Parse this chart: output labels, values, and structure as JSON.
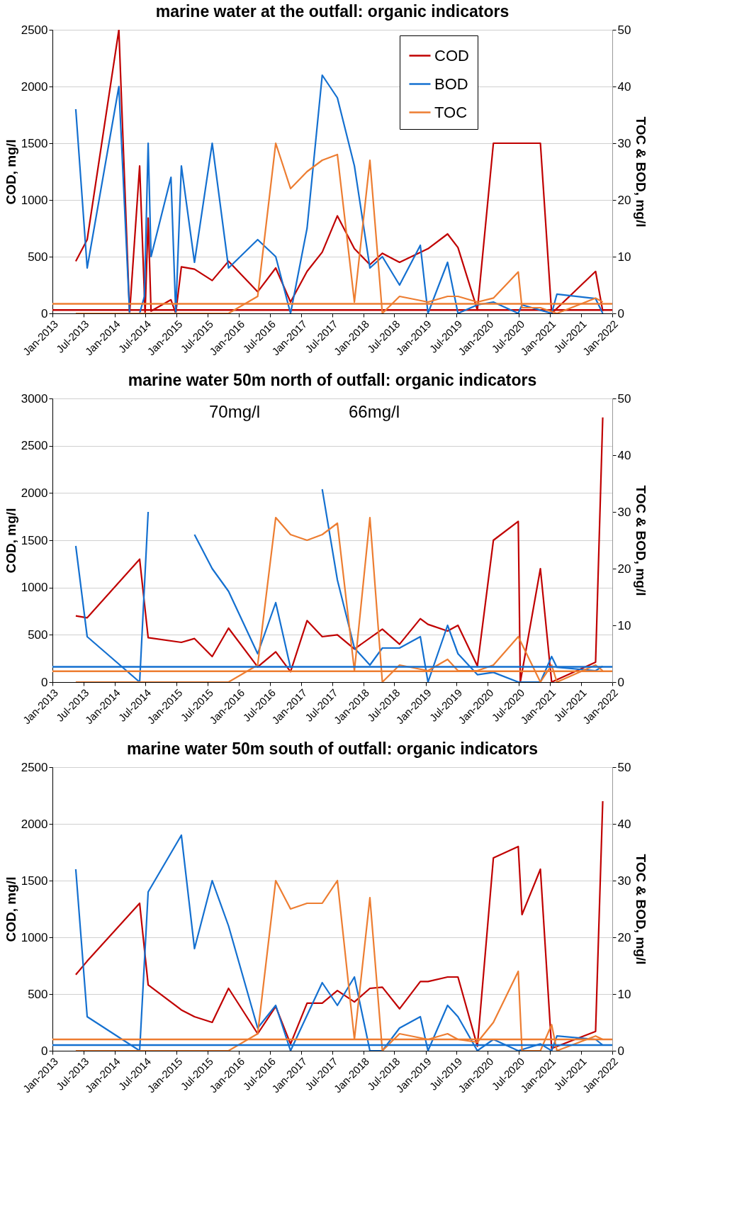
{
  "chart_data": [
    {
      "type": "line",
      "title": "marine water at the outfall: organic indicators",
      "ylabel": "COD, mg/l",
      "y2label": "TOC & BOD, mg/l",
      "xlim": [
        "2013-01",
        "2022-01"
      ],
      "xticks": [
        {
          "value": "2013-01",
          "label": "Jan-2013"
        },
        {
          "value": "2013-07",
          "label": "Jul-2013"
        },
        {
          "value": "2014-01",
          "label": "Jan-2014"
        },
        {
          "value": "2014-07",
          "label": "Jul-2014"
        },
        {
          "value": "2015-01",
          "label": "Jan-2015"
        },
        {
          "value": "2015-07",
          "label": "Jul-2015"
        },
        {
          "value": "2016-01",
          "label": "Jan-2016"
        },
        {
          "value": "2016-07",
          "label": "Jul-2016"
        },
        {
          "value": "2017-01",
          "label": "Jan-2017"
        },
        {
          "value": "2017-07",
          "label": "Jul-2017"
        },
        {
          "value": "2018-01",
          "label": "Jan-2018"
        },
        {
          "value": "2018-07",
          "label": "Jul-2018"
        },
        {
          "value": "2019-01",
          "label": "Jan-2019"
        },
        {
          "value": "2019-07",
          "label": "Jul-2019"
        },
        {
          "value": "2020-01",
          "label": "Jan-2020"
        },
        {
          "value": "2020-07",
          "label": "Jul-2020"
        },
        {
          "value": "2021-01",
          "label": "Jan-2021"
        },
        {
          "value": "2021-07",
          "label": "Jul-2021"
        },
        {
          "value": "2022-01",
          "label": "Jan-2022"
        }
      ],
      "ylim": [
        0,
        2500
      ],
      "yticks": [
        0,
        500,
        1000,
        1500,
        2000,
        2500
      ],
      "y2lim": [
        0,
        50
      ],
      "y2ticks": [
        0,
        10,
        20,
        30,
        40,
        50
      ],
      "grid": "y",
      "legend": "top right",
      "series": [
        {
          "name": "COD",
          "color": "#c00000",
          "x": [
            "2013-05-18",
            "2013-07-24",
            "2014-01-26",
            "2014-03-30",
            "2014-05-28",
            "2014-06-29",
            "2014-07-17",
            "2014-08-03",
            "2014-11-28",
            "2014-12-26",
            "2015-01-28",
            "2015-04-15",
            "2015-07-28",
            "2015-11-01",
            "2016-04-20",
            "2016-08-04",
            "2016-10-30",
            "2017-02-04",
            "2017-05-04",
            "2017-08-01",
            "2017-11-09",
            "2018-02-08",
            "2018-04-22",
            "2018-08-01",
            "2019-01-15",
            "2019-05-10",
            "2019-07-10",
            "2019-11-01",
            "2020-02-03",
            "2020-11-05",
            "2021-01-10",
            "2021-09-25",
            "2021-11-06"
          ],
          "values": [
            460,
            650,
            2500,
            0,
            1300,
            0,
            840,
            20,
            120,
            0,
            410,
            390,
            290,
            460,
            190,
            400,
            100,
            370,
            540,
            860,
            570,
            430,
            530,
            450,
            570,
            700,
            580,
            30,
            1500,
            1500,
            0,
            370,
            20
          ]
        },
        {
          "name": "BOD",
          "color": "#1470d0",
          "axis": "y2",
          "x": [
            "2013-05-18",
            "2013-07-24",
            "2014-01-26",
            "2014-03-30",
            "2014-05-28",
            "2014-06-25",
            "2014-07-17",
            "2014-08-03",
            "2014-11-28",
            "2014-12-26",
            "2015-01-28",
            "2015-04-15",
            "2015-07-28",
            "2015-11-01",
            "2016-04-20",
            "2016-08-04",
            "2016-10-30",
            "2017-02-04",
            "2017-05-04",
            "2017-08-01",
            "2017-11-09",
            "2018-02-08",
            "2018-04-22",
            "2018-08-01",
            "2018-12-01",
            "2019-01-15",
            "2019-05-10",
            "2019-07-10",
            "2019-11-01",
            "2020-02-03",
            "2020-06-28",
            "2020-07-20",
            "2021-01-10",
            "2021-02-10",
            "2021-09-25",
            "2021-11-06"
          ],
          "values": [
            36,
            8,
            40,
            0,
            0,
            3,
            30,
            10,
            24,
            0,
            26,
            9,
            30,
            8,
            13,
            10,
            0,
            15,
            42,
            38,
            26,
            8,
            10,
            5,
            12,
            0,
            9,
            0,
            1.5,
            2,
            0,
            1.5,
            0,
            3.4,
            2.6,
            0
          ]
        },
        {
          "name": "TOC",
          "color": "#ed7d31",
          "axis": "y2",
          "x": [
            "2013-05-18",
            "2015-11-01",
            "2016-04-20",
            "2016-08-04",
            "2016-10-30",
            "2017-02-04",
            "2017-05-04",
            "2017-08-01",
            "2017-11-09",
            "2018-02-08",
            "2018-04-22",
            "2018-08-01",
            "2019-01-15",
            "2019-05-10",
            "2019-07-10",
            "2019-11-01",
            "2020-02-03",
            "2020-06-28",
            "2020-07-20",
            "2020-11-05",
            "2021-02-10",
            "2021-09-25",
            "2021-11-06"
          ],
          "values": [
            0,
            0,
            3,
            30,
            22,
            25,
            27,
            28,
            2,
            27,
            0,
            3,
            2,
            3,
            3,
            2,
            2.7,
            7.3,
            1,
            1,
            0,
            2.7,
            2
          ]
        }
      ],
      "ref_lines": [
        {
          "axis": "y",
          "value": 30,
          "color": "#c00000"
        },
        {
          "axis": "y2",
          "value": 1.7,
          "color": "#ed7d31"
        }
      ]
    },
    {
      "type": "line",
      "title": "marine water 50m north of outfall: organic indicators",
      "ylabel": "COD, mg/l",
      "y2label": "TOC & BOD, mg/l",
      "xlim": [
        "2013-01",
        "2022-01"
      ],
      "xticks": [
        {
          "value": "2013-01",
          "label": "Jan-2013"
        },
        {
          "value": "2013-07",
          "label": "Jul-2013"
        },
        {
          "value": "2014-01",
          "label": "Jan-2014"
        },
        {
          "value": "2014-07",
          "label": "Jul-2014"
        },
        {
          "value": "2015-01",
          "label": "Jan-2015"
        },
        {
          "value": "2015-07",
          "label": "Jul-2015"
        },
        {
          "value": "2016-01",
          "label": "Jan-2016"
        },
        {
          "value": "2016-07",
          "label": "Jul-2016"
        },
        {
          "value": "2017-01",
          "label": "Jan-2017"
        },
        {
          "value": "2017-07",
          "label": "Jul-2017"
        },
        {
          "value": "2018-01",
          "label": "Jan-2018"
        },
        {
          "value": "2018-07",
          "label": "Jul-2018"
        },
        {
          "value": "2019-01",
          "label": "Jan-2019"
        },
        {
          "value": "2019-07",
          "label": "Jul-2019"
        },
        {
          "value": "2020-01",
          "label": "Jan-2020"
        },
        {
          "value": "2020-07",
          "label": "Jul-2020"
        },
        {
          "value": "2021-01",
          "label": "Jan-2021"
        },
        {
          "value": "2021-07",
          "label": "Jul-2021"
        },
        {
          "value": "2022-01",
          "label": "Jan-2022"
        }
      ],
      "ylim": [
        0,
        3000
      ],
      "yticks": [
        0,
        500,
        1000,
        1500,
        2000,
        2500,
        3000
      ],
      "y2lim": [
        0,
        50
      ],
      "y2ticks": [
        0,
        10,
        20,
        30,
        40,
        50
      ],
      "grid": "y",
      "legend": "top right",
      "series": [
        {
          "name": "COD",
          "color": "#c00000",
          "x": [
            "2013-05-18",
            "2013-07-24",
            "2014-05-28",
            "2014-07-17",
            "2015-01-28",
            "2015-04-15",
            "2015-07-28",
            "2015-11-01",
            "2016-04-20",
            "2016-08-04",
            "2016-10-30",
            "2017-02-04",
            "2017-05-04",
            "2017-08-01",
            "2017-11-09",
            "2018-04-22",
            "2018-08-01",
            "2018-12-01",
            "2019-01-15",
            "2019-05-10",
            "2019-07-10",
            "2019-11-01",
            "2020-02-03",
            "2020-06-28",
            "2020-07-10",
            "2020-11-05",
            "2021-01-10",
            "2021-09-25",
            "2021-11-06"
          ],
          "values": [
            700,
            680,
            1300,
            470,
            420,
            460,
            270,
            570,
            160,
            320,
            110,
            650,
            480,
            500,
            350,
            560,
            400,
            670,
            610,
            540,
            600,
            170,
            1500,
            1700,
            0,
            1200,
            0,
            210,
            2800
          ]
        },
        {
          "name": "BOD",
          "color": "#1470d0",
          "axis": "y2",
          "x": [
            "2013-05-18",
            "2013-07-24",
            "2014-05-28",
            "2014-07-17",
            "2015-01-28",
            "2015-04-15",
            "2015-07-28",
            "2015-11-01",
            "2016-04-20",
            "2016-08-04",
            "2016-10-30",
            "2017-02-18",
            "2017-05-04",
            "2017-08-01",
            "2017-11-09",
            "2018-02-08",
            "2018-04-22",
            "2018-08-01",
            "2018-12-01",
            "2019-01-15",
            "2019-05-10",
            "2019-07-10",
            "2019-11-01",
            "2020-02-03",
            "2020-06-28",
            "2020-11-05",
            "2021-01-10",
            "2021-02-10",
            "2021-09-25",
            "2021-11-06"
          ],
          "values": [
            24,
            8,
            0,
            30,
            null,
            26,
            20,
            16,
            5,
            14,
            2.5,
            null,
            34,
            18,
            6,
            3,
            6,
            6,
            8,
            0,
            10,
            5,
            1.3,
            1.7,
            0,
            0,
            4.5,
            2.6,
            2,
            2.8
          ]
        },
        {
          "name": "TOC",
          "color": "#ed7d31",
          "axis": "y2",
          "x": [
            "2013-05-18",
            "2015-11-01",
            "2016-04-20",
            "2016-08-04",
            "2016-10-30",
            "2017-02-04",
            "2017-05-04",
            "2017-08-01",
            "2017-11-09",
            "2018-02-08",
            "2018-04-22",
            "2018-08-01",
            "2019-01-15",
            "2019-05-10",
            "2019-07-10",
            "2019-11-01",
            "2020-02-03",
            "2020-06-28",
            "2020-11-05",
            "2021-01-10",
            "2021-02-10",
            "2021-09-25",
            "2021-11-06"
          ],
          "values": [
            0,
            0,
            3,
            29,
            26,
            25,
            26,
            28,
            2,
            29,
            0,
            3,
            2,
            4,
            2,
            2,
            3,
            8,
            0,
            3,
            0,
            3,
            2
          ]
        }
      ],
      "ref_lines": [
        {
          "axis": "y2",
          "value": 2.7,
          "color": "#1470d0"
        },
        {
          "axis": "y2",
          "value": 1.9,
          "color": "#ed7d31"
        }
      ],
      "annotations": [
        "70mg/l",
        "66mg/l"
      ]
    },
    {
      "type": "line",
      "title": "marine water 50m south of outfall: organic indicators",
      "ylabel": "COD, mg/l",
      "y2label": "TOC & BOD, mg/l",
      "xlim": [
        "2013-01",
        "2022-01"
      ],
      "xticks": [
        {
          "value": "2013-01",
          "label": "Jan-2013"
        },
        {
          "value": "2013-07",
          "label": "Jul-2013"
        },
        {
          "value": "2014-01",
          "label": "Jan-2014"
        },
        {
          "value": "2014-07",
          "label": "Jul-2014"
        },
        {
          "value": "2015-01",
          "label": "Jan-2015"
        },
        {
          "value": "2015-07",
          "label": "Jul-2015"
        },
        {
          "value": "2016-01",
          "label": "Jan-2016"
        },
        {
          "value": "2016-07",
          "label": "Jul-2016"
        },
        {
          "value": "2017-01",
          "label": "Jan-2017"
        },
        {
          "value": "2017-07",
          "label": "Jul-2017"
        },
        {
          "value": "2018-01",
          "label": "Jan-2018"
        },
        {
          "value": "2018-07",
          "label": "Jul-2018"
        },
        {
          "value": "2019-01",
          "label": "Jan-2019"
        },
        {
          "value": "2019-07",
          "label": "Jul-2019"
        },
        {
          "value": "2020-01",
          "label": "Jan-2020"
        },
        {
          "value": "2020-07",
          "label": "Jul-2020"
        },
        {
          "value": "2021-01",
          "label": "Jan-2021"
        },
        {
          "value": "2021-07",
          "label": "Jul-2021"
        },
        {
          "value": "2022-01",
          "label": "Jan-2022"
        }
      ],
      "ylim": [
        0,
        2500
      ],
      "yticks": [
        0,
        500,
        1000,
        1500,
        2000,
        2500
      ],
      "y2lim": [
        0,
        50
      ],
      "y2ticks": [
        0,
        10,
        20,
        30,
        40,
        50
      ],
      "grid": "y",
      "legend": "top",
      "series": [
        {
          "name": "COD",
          "color": "#c00000",
          "x": [
            "2013-05-18",
            "2013-07-24",
            "2014-05-28",
            "2014-07-17",
            "2015-01-28",
            "2015-04-15",
            "2015-07-28",
            "2015-11-01",
            "2016-04-20",
            "2016-08-04",
            "2016-10-30",
            "2017-02-04",
            "2017-05-04",
            "2017-08-01",
            "2017-11-09",
            "2018-02-08",
            "2018-04-22",
            "2018-08-01",
            "2018-12-01",
            "2019-01-15",
            "2019-05-10",
            "2019-07-10",
            "2019-11-01",
            "2020-02-03",
            "2020-06-28",
            "2020-07-20",
            "2020-11-05",
            "2021-01-10",
            "2021-09-25",
            "2021-11-06"
          ],
          "values": [
            670,
            790,
            1300,
            580,
            360,
            300,
            250,
            550,
            150,
            390,
            60,
            420,
            420,
            530,
            430,
            550,
            560,
            370,
            610,
            610,
            650,
            650,
            40,
            1700,
            1800,
            1200,
            1600,
            20,
            170,
            2200
          ]
        },
        {
          "name": "BOD",
          "color": "#1470d0",
          "axis": "y2",
          "x": [
            "2013-05-18",
            "2013-07-24",
            "2014-05-28",
            "2014-07-17",
            "2015-01-28",
            "2015-04-15",
            "2015-07-28",
            "2015-11-01",
            "2016-04-20",
            "2016-08-04",
            "2016-10-30",
            "2017-05-04",
            "2017-08-01",
            "2017-11-09",
            "2018-02-08",
            "2018-04-22",
            "2018-08-01",
            "2018-12-01",
            "2019-01-15",
            "2019-05-10",
            "2019-07-10",
            "2019-11-01",
            "2020-02-03",
            "2020-06-28",
            "2020-11-05",
            "2021-01-10",
            "2021-02-10",
            "2021-09-25",
            "2021-11-06"
          ],
          "values": [
            32,
            6,
            0,
            28,
            38,
            18,
            30,
            22,
            4,
            8,
            0,
            12,
            8,
            13,
            0,
            0,
            4,
            6,
            0,
            8,
            6,
            0,
            2,
            0,
            1.2,
            0,
            2.6,
            2,
            1
          ]
        },
        {
          "name": "TOC",
          "color": "#ed7d31",
          "axis": "y2",
          "x": [
            "2013-05-18",
            "2015-11-01",
            "2016-04-20",
            "2016-08-04",
            "2016-10-30",
            "2017-02-04",
            "2017-05-04",
            "2017-08-01",
            "2017-11-09",
            "2018-02-08",
            "2018-04-22",
            "2018-08-01",
            "2019-01-15",
            "2019-05-10",
            "2019-07-10",
            "2019-11-01",
            "2020-02-03",
            "2020-06-28",
            "2020-07-20",
            "2020-11-05",
            "2021-01-10",
            "2021-02-10",
            "2021-09-25",
            "2021-11-06"
          ],
          "values": [
            0,
            0,
            3,
            30,
            25,
            26,
            26,
            30,
            2,
            27,
            0,
            3,
            2,
            3,
            2,
            1.5,
            5,
            14,
            0,
            0,
            4.6,
            0,
            2.6,
            2
          ]
        }
      ],
      "ref_lines": [
        {
          "axis": "y2",
          "value": 2,
          "color": "#ed7d31"
        },
        {
          "axis": "y2",
          "value": 1,
          "color": "#1470d0"
        }
      ]
    }
  ]
}
